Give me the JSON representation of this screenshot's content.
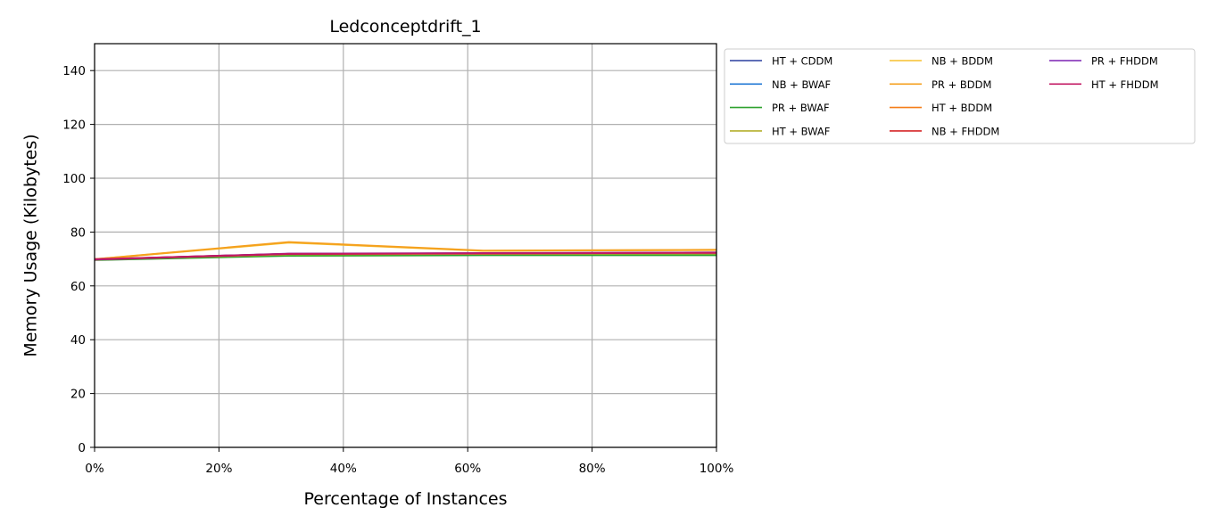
{
  "chart_data": {
    "type": "line",
    "title": "Ledconceptdrift_1",
    "xlabel": "Percentage of Instances",
    "ylabel": "Memory Usage (Kilobytes)",
    "xlim": [
      0,
      100
    ],
    "ylim": [
      0,
      150
    ],
    "x_ticks": [
      "0%",
      "20%",
      "40%",
      "60%",
      "80%",
      "100%"
    ],
    "y_ticks": [
      "0",
      "20",
      "40",
      "60",
      "80",
      "100",
      "120",
      "140"
    ],
    "x_tick_values": [
      0,
      20,
      40,
      60,
      80,
      100
    ],
    "y_tick_values": [
      0,
      20,
      40,
      60,
      80,
      100,
      120,
      140
    ],
    "grid": true,
    "legend_position": "outside upper right",
    "legend_columns": 3,
    "series": [
      {
        "name": "HT + CDDM",
        "color": "#2a3f9f",
        "x": [
          0,
          31.25,
          62.5,
          100
        ],
        "y": [
          69.9,
          71.8,
          71.9,
          72.0
        ]
      },
      {
        "name": "NB + BWAF",
        "color": "#1f77d4",
        "x": [
          0,
          31.25,
          62.5,
          100
        ],
        "y": [
          69.8,
          71.5,
          71.7,
          71.7
        ]
      },
      {
        "name": "PR + BWAF",
        "color": "#2ca02c",
        "x": [
          0,
          31.25,
          62.5,
          100
        ],
        "y": [
          69.6,
          71.2,
          71.4,
          71.4
        ]
      },
      {
        "name": "HT + BWAF",
        "color": "#b5b02f",
        "x": [
          0,
          31.25,
          62.5,
          100
        ],
        "y": [
          69.8,
          71.7,
          71.9,
          72.0
        ]
      },
      {
        "name": "NB + BDDM",
        "color": "#f7c12e",
        "x": [
          0,
          31.25,
          62.5,
          100
        ],
        "y": [
          69.9,
          76.1,
          73.0,
          73.3
        ]
      },
      {
        "name": "PR + BDDM",
        "color": "#f5a01e",
        "x": [
          0,
          31.25,
          62.5,
          100
        ],
        "y": [
          69.9,
          76.3,
          73.1,
          73.4
        ]
      },
      {
        "name": "HT + BDDM",
        "color": "#f57c16",
        "x": [
          0,
          31.25,
          62.5,
          100
        ],
        "y": [
          69.9,
          71.9,
          72.0,
          72.3
        ]
      },
      {
        "name": "NB + FHDDM",
        "color": "#d62728",
        "x": [
          0,
          31.25,
          62.5,
          100
        ],
        "y": [
          69.8,
          71.9,
          72.1,
          72.4
        ]
      },
      {
        "name": "PR + FHDDM",
        "color": "#7b22b4",
        "x": [
          0,
          31.25,
          62.5,
          100
        ],
        "y": [
          69.8,
          72.0,
          72.2,
          72.4
        ]
      },
      {
        "name": "HT + FHDDM",
        "color": "#c21863",
        "x": [
          0,
          31.25,
          62.5,
          100
        ],
        "y": [
          69.9,
          71.9,
          72.1,
          72.3
        ]
      }
    ]
  }
}
